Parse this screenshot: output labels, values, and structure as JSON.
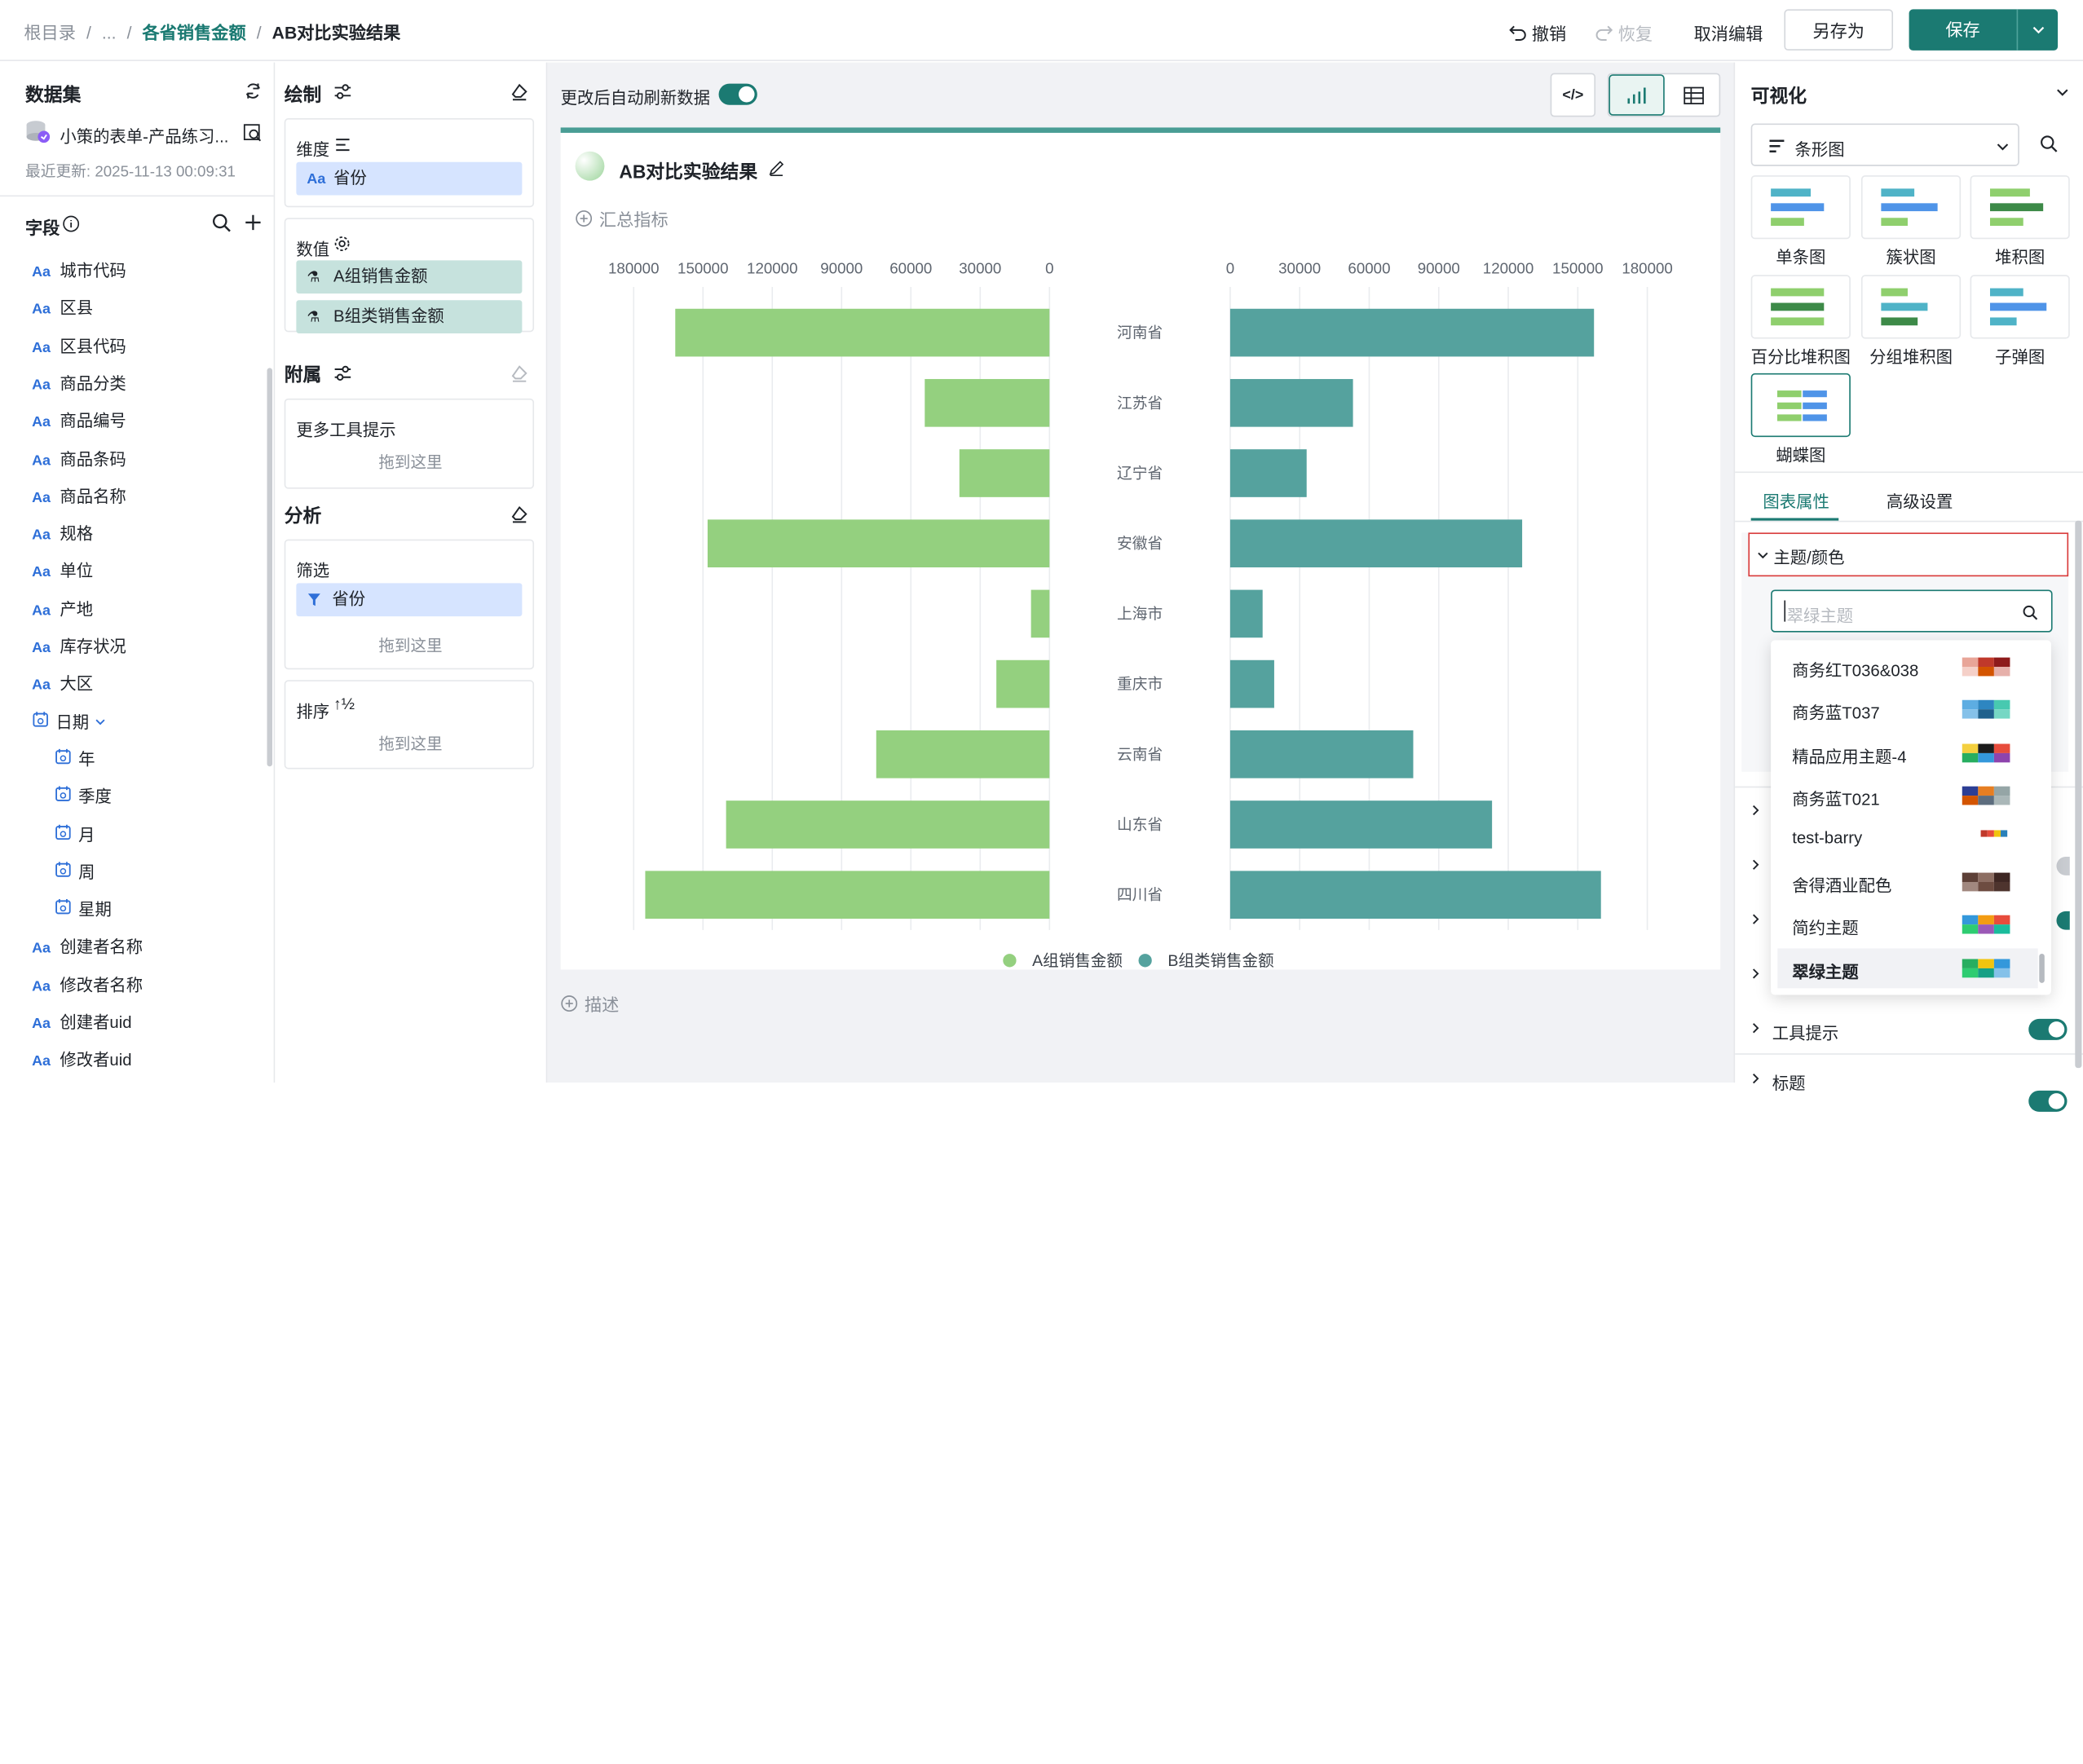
{
  "breadcrumb": {
    "root": "根目录",
    "ellipsis": "...",
    "parent": "各省销售金额",
    "current": "AB对比实验结果"
  },
  "header": {
    "undo": "撤销",
    "redo": "恢复",
    "cancel_edit": "取消编辑",
    "save_as": "另存为",
    "save": "保存"
  },
  "dataset": {
    "title": "数据集",
    "name": "小策的表单-产品练习...",
    "updated": "最近更新: 2025-11-13 00:09:31",
    "fields_title": "字段",
    "fields": [
      {
        "type": "Aa",
        "label": "城市代码"
      },
      {
        "type": "Aa",
        "label": "区县"
      },
      {
        "type": "Aa",
        "label": "区县代码"
      },
      {
        "type": "Aa",
        "label": "商品分类"
      },
      {
        "type": "Aa",
        "label": "商品编号"
      },
      {
        "type": "Aa",
        "label": "商品条码"
      },
      {
        "type": "Aa",
        "label": "商品名称"
      },
      {
        "type": "Aa",
        "label": "规格"
      },
      {
        "type": "Aa",
        "label": "单位"
      },
      {
        "type": "Aa",
        "label": "产地"
      },
      {
        "type": "Aa",
        "label": "库存状况"
      },
      {
        "type": "Aa",
        "label": "大区"
      }
    ],
    "date_field": "日期",
    "date_children": [
      "年",
      "季度",
      "月",
      "周",
      "星期"
    ],
    "more_fields": [
      {
        "type": "Aa",
        "label": "创建者名称"
      },
      {
        "type": "Aa",
        "label": "修改者名称"
      },
      {
        "type": "Aa",
        "label": "创建者uid"
      },
      {
        "type": "Aa",
        "label": "修改者uid"
      }
    ]
  },
  "config": {
    "draw_title": "绘制",
    "dimension_label": "维度",
    "dimension_pill": "省份",
    "measure_label": "数值",
    "measure_pills": [
      "A组销售金额",
      "B组类销售金额"
    ],
    "attach_title": "附属",
    "tooltip_label": "更多工具提示",
    "drop_here": "拖到这里",
    "analysis_title": "分析",
    "filter_label": "筛选",
    "filter_pill": "省份",
    "sort_label": "排序"
  },
  "canvas": {
    "auto_refresh": "更改后自动刷新数据",
    "chart_title": "AB对比实验结果",
    "summary": "汇总指标",
    "description": "描述"
  },
  "chart_data": {
    "type": "bar",
    "subtype": "butterfly",
    "categories": [
      "河南省",
      "江苏省",
      "辽宁省",
      "安徽省",
      "上海市",
      "重庆市",
      "云南省",
      "山东省",
      "四川省"
    ],
    "series": [
      {
        "name": "A组销售金额",
        "color": "#94d07f",
        "values": [
          162000,
          54000,
          39000,
          148000,
          8000,
          23000,
          75000,
          140000,
          175000
        ]
      },
      {
        "name": "B组类销售金额",
        "color": "#55a29e",
        "values": [
          157000,
          53000,
          33000,
          126000,
          14000,
          19000,
          79000,
          113000,
          160000
        ]
      }
    ],
    "left_ticks": [
      "180000",
      "150000",
      "120000",
      "90000",
      "60000",
      "30000",
      "0"
    ],
    "right_ticks": [
      "0",
      "30000",
      "60000",
      "90000",
      "120000",
      "150000",
      "180000"
    ],
    "xlim": [
      0,
      180000
    ],
    "legend": "bottom"
  },
  "right": {
    "title": "可视化",
    "chart_type": "条形图",
    "thumbs": [
      "单条图",
      "簇状图",
      "堆积图",
      "百分比堆积图",
      "分组堆积图",
      "子弹图",
      "蝴蝶图"
    ],
    "tabs": [
      "图表属性",
      "高级设置"
    ],
    "section_theme": "主题/颜色",
    "theme_search": "翠绿主题",
    "themes": [
      "商务红T036&038",
      "商务蓝T037",
      "精品应用主题-4",
      "商务蓝T021",
      "test-barry",
      "舍得酒业配色",
      "简约主题",
      "翠绿主题"
    ],
    "section_tooltip": "工具提示",
    "section_title": "标题"
  }
}
